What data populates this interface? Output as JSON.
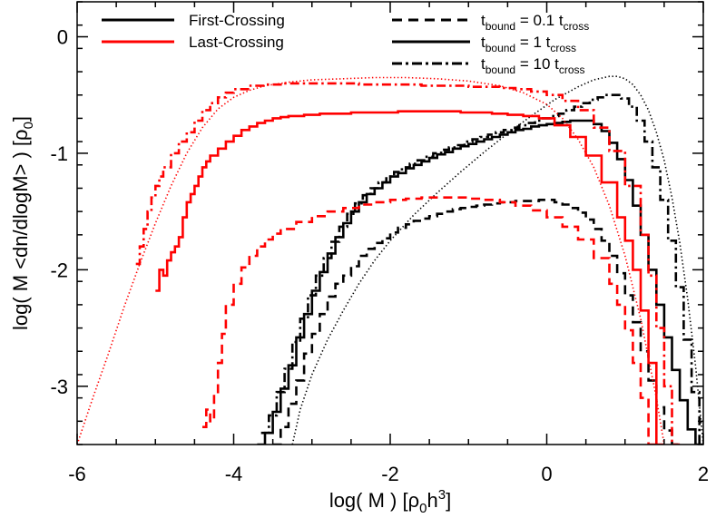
{
  "chart_data": {
    "type": "line",
    "title": "",
    "xlabel": "log( M )   [ρ0h3]",
    "xlabel_parts": {
      "main": "log( M )   [ρ",
      "sub": "0",
      "mid": "h",
      "sup": "3",
      "end": "]"
    },
    "ylabel": "log( M <dn/dlogM> )  [ρ0]",
    "ylabel_parts": {
      "main": "log( M <dn/dlogM> )  [ρ",
      "sub": "0",
      "end": "]"
    },
    "xlim": [
      -6,
      2
    ],
    "ylim": [
      -3.5,
      0.3
    ],
    "x_ticks": [
      -6,
      -4,
      -2,
      0,
      2
    ],
    "x_tick_labels": [
      "-6",
      "-4",
      "-2",
      "0",
      "2"
    ],
    "y_ticks": [
      -3,
      -2,
      -1,
      0
    ],
    "y_tick_labels": [
      "-3",
      "-2",
      "-1",
      "0"
    ],
    "grid": false,
    "legend_color": {
      "placement": "top-left",
      "entries": [
        {
          "label": "First-Crossing",
          "color": "#000000"
        },
        {
          "label": "Last-Crossing",
          "color": "#ff0000"
        }
      ]
    },
    "legend_style": {
      "placement": "top-right",
      "entries": [
        {
          "style": "dashed",
          "label": "t",
          "sub": "bound",
          "mid": " = 0.1 t",
          "sub2": "cross"
        },
        {
          "style": "solid",
          "label": "t",
          "sub": "bound",
          "mid": " = 1 t",
          "sub2": "cross"
        },
        {
          "style": "dashdot",
          "label": "t",
          "sub": "bound",
          "mid": " = 10 t",
          "sub2": "cross"
        }
      ]
    },
    "series": [
      {
        "crossing": "first",
        "tbound": "1",
        "style": "solid",
        "color": "#000000",
        "step": true,
        "x": [
          -3.7,
          -3.6,
          -3.5,
          -3.4,
          -3.3,
          -3.2,
          -3.1,
          -3.0,
          -2.9,
          -2.8,
          -2.7,
          -2.6,
          -2.5,
          -2.4,
          -2.3,
          -2.2,
          -2.1,
          -2.0,
          -1.9,
          -1.8,
          -1.7,
          -1.6,
          -1.5,
          -1.4,
          -1.3,
          -1.2,
          -1.1,
          -1.0,
          -0.9,
          -0.8,
          -0.7,
          -0.6,
          -0.5,
          -0.4,
          -0.3,
          -0.2,
          -0.1,
          0.0,
          0.1,
          0.2,
          0.3,
          0.4,
          0.5,
          0.6,
          0.7,
          0.8,
          0.9,
          1.0,
          1.1,
          1.2,
          1.3,
          1.4,
          1.5,
          1.6,
          1.7,
          1.8,
          1.9
        ],
        "y": [
          -3.5,
          -3.4,
          -3.22,
          -3.02,
          -2.82,
          -2.58,
          -2.38,
          -2.18,
          -2.02,
          -1.86,
          -1.72,
          -1.6,
          -1.5,
          -1.42,
          -1.35,
          -1.3,
          -1.25,
          -1.2,
          -1.17,
          -1.13,
          -1.1,
          -1.07,
          -1.04,
          -1.01,
          -0.99,
          -0.96,
          -0.94,
          -0.92,
          -0.9,
          -0.88,
          -0.86,
          -0.84,
          -0.82,
          -0.8,
          -0.79,
          -0.77,
          -0.76,
          -0.75,
          -0.74,
          -0.73,
          -0.72,
          -0.72,
          -0.72,
          -0.75,
          -0.81,
          -0.91,
          -1.05,
          -1.23,
          -1.45,
          -1.7,
          -2.0,
          -2.3,
          -2.58,
          -2.86,
          -3.12,
          -3.37,
          -3.5
        ]
      },
      {
        "crossing": "first",
        "tbound": "0.1",
        "style": "dashed",
        "color": "#000000",
        "step": true,
        "x": [
          -3.5,
          -3.4,
          -3.3,
          -3.2,
          -3.1,
          -3.0,
          -2.9,
          -2.8,
          -2.7,
          -2.6,
          -2.5,
          -2.4,
          -2.3,
          -2.2,
          -2.1,
          -2.0,
          -1.9,
          -1.8,
          -1.7,
          -1.6,
          -1.5,
          -1.4,
          -1.3,
          -1.2,
          -1.1,
          -1.0,
          -0.9,
          -0.8,
          -0.7,
          -0.6,
          -0.5,
          -0.4,
          -0.3,
          -0.2,
          -0.1,
          0.0,
          0.1,
          0.2,
          0.3,
          0.4,
          0.5,
          0.6,
          0.7,
          0.8,
          0.9,
          1.0,
          1.1,
          1.2,
          1.3,
          1.4,
          1.5,
          1.6
        ],
        "y": [
          -3.5,
          -3.35,
          -3.15,
          -2.95,
          -2.72,
          -2.55,
          -2.38,
          -2.23,
          -2.12,
          -2.05,
          -1.97,
          -1.88,
          -1.82,
          -1.77,
          -1.73,
          -1.68,
          -1.64,
          -1.61,
          -1.58,
          -1.56,
          -1.54,
          -1.52,
          -1.5,
          -1.48,
          -1.47,
          -1.46,
          -1.45,
          -1.44,
          -1.43,
          -1.42,
          -1.42,
          -1.41,
          -1.41,
          -1.41,
          -1.4,
          -1.4,
          -1.42,
          -1.44,
          -1.47,
          -1.51,
          -1.57,
          -1.65,
          -1.75,
          -1.88,
          -2.03,
          -2.22,
          -2.45,
          -2.7,
          -2.95,
          -3.18,
          -3.38,
          -3.5
        ]
      },
      {
        "crossing": "first",
        "tbound": "10",
        "style": "dashdot",
        "color": "#000000",
        "step": true,
        "x": [
          -3.65,
          -3.55,
          -3.45,
          -3.35,
          -3.25,
          -3.15,
          -3.05,
          -2.95,
          -2.85,
          -2.75,
          -2.65,
          -2.55,
          -2.45,
          -2.35,
          -2.25,
          -2.15,
          -2.05,
          -1.95,
          -1.85,
          -1.75,
          -1.65,
          -1.55,
          -1.45,
          -1.35,
          -1.25,
          -1.15,
          -1.05,
          -0.95,
          -0.85,
          -0.75,
          -0.65,
          -0.55,
          -0.45,
          -0.35,
          -0.25,
          -0.15,
          -0.05,
          0.05,
          0.15,
          0.25,
          0.35,
          0.45,
          0.55,
          0.65,
          0.75,
          0.85,
          0.95,
          1.05,
          1.15,
          1.25,
          1.35,
          1.45,
          1.55,
          1.65,
          1.75,
          1.85,
          1.95
        ],
        "y": [
          -3.4,
          -3.25,
          -3.05,
          -2.85,
          -2.62,
          -2.42,
          -2.22,
          -2.05,
          -1.9,
          -1.76,
          -1.63,
          -1.52,
          -1.43,
          -1.36,
          -1.3,
          -1.25,
          -1.2,
          -1.16,
          -1.12,
          -1.09,
          -1.06,
          -1.03,
          -1.0,
          -0.97,
          -0.95,
          -0.93,
          -0.9,
          -0.88,
          -0.86,
          -0.84,
          -0.82,
          -0.8,
          -0.78,
          -0.76,
          -0.74,
          -0.72,
          -0.7,
          -0.68,
          -0.66,
          -0.63,
          -0.6,
          -0.57,
          -0.54,
          -0.52,
          -0.5,
          -0.5,
          -0.53,
          -0.6,
          -0.72,
          -0.9,
          -1.12,
          -1.4,
          -1.75,
          -2.15,
          -2.6,
          -3.05,
          -3.5
        ]
      },
      {
        "crossing": "first",
        "tbound": "theory",
        "style": "dotted",
        "color": "#000000",
        "step": false,
        "x": [
          -3.25,
          -3.15,
          -3.0,
          -2.8,
          -2.6,
          -2.4,
          -2.2,
          -2.0,
          -1.7,
          -1.4,
          -1.1,
          -0.8,
          -0.5,
          -0.2,
          0.1,
          0.4,
          0.6,
          0.8,
          0.9,
          1.0,
          1.1,
          1.2,
          1.3,
          1.4,
          1.5,
          1.6,
          1.7,
          1.8,
          1.9,
          2.0
        ],
        "y": [
          -3.5,
          -3.2,
          -2.9,
          -2.6,
          -2.35,
          -2.12,
          -1.92,
          -1.75,
          -1.53,
          -1.34,
          -1.16,
          -0.99,
          -0.83,
          -0.68,
          -0.54,
          -0.43,
          -0.37,
          -0.34,
          -0.34,
          -0.36,
          -0.41,
          -0.5,
          -0.63,
          -0.82,
          -1.06,
          -1.38,
          -1.77,
          -2.25,
          -2.82,
          -3.5
        ]
      },
      {
        "crossing": "last",
        "tbound": "1",
        "style": "solid",
        "color": "#ff0000",
        "step": true,
        "x": [
          -5.0,
          -4.95,
          -4.9,
          -4.85,
          -4.8,
          -4.75,
          -4.7,
          -4.65,
          -4.6,
          -4.55,
          -4.5,
          -4.45,
          -4.4,
          -4.35,
          -4.3,
          -4.2,
          -4.1,
          -4.0,
          -3.9,
          -3.8,
          -3.7,
          -3.6,
          -3.5,
          -3.4,
          -3.3,
          -3.1,
          -2.9,
          -2.7,
          -2.5,
          -2.3,
          -2.1,
          -1.9,
          -1.7,
          -1.5,
          -1.3,
          -1.1,
          -0.9,
          -0.7,
          -0.5,
          -0.3,
          -0.1,
          0.1,
          0.3,
          0.5,
          0.7,
          0.9,
          1.0,
          1.1,
          1.2,
          1.3,
          1.4
        ],
        "y": [
          -2.18,
          -2.0,
          -2.05,
          -1.92,
          -1.85,
          -1.8,
          -1.72,
          -1.55,
          -1.42,
          -1.35,
          -1.28,
          -1.2,
          -1.12,
          -1.07,
          -1.02,
          -0.96,
          -0.9,
          -0.85,
          -0.8,
          -0.77,
          -0.74,
          -0.72,
          -0.7,
          -0.69,
          -0.68,
          -0.67,
          -0.66,
          -0.66,
          -0.65,
          -0.65,
          -0.65,
          -0.64,
          -0.64,
          -0.64,
          -0.64,
          -0.65,
          -0.65,
          -0.66,
          -0.67,
          -0.68,
          -0.7,
          -0.76,
          -0.86,
          -1.02,
          -1.25,
          -1.55,
          -1.75,
          -2.0,
          -2.35,
          -2.8,
          -3.5
        ]
      },
      {
        "crossing": "last",
        "tbound": "0.1",
        "style": "dashed",
        "color": "#ff0000",
        "step": true,
        "x": [
          -4.4,
          -4.35,
          -4.3,
          -4.25,
          -4.2,
          -4.15,
          -4.1,
          -4.0,
          -3.9,
          -3.8,
          -3.7,
          -3.6,
          -3.5,
          -3.4,
          -3.2,
          -3.0,
          -2.8,
          -2.6,
          -2.4,
          -2.2,
          -2.0,
          -1.8,
          -1.6,
          -1.4,
          -1.2,
          -1.0,
          -0.8,
          -0.6,
          -0.4,
          -0.2,
          0.0,
          0.2,
          0.4,
          0.6,
          0.8,
          0.9,
          1.0,
          1.1,
          1.2,
          1.3
        ],
        "y": [
          -3.35,
          -3.2,
          -3.3,
          -3.05,
          -2.8,
          -2.55,
          -2.3,
          -2.12,
          -1.98,
          -1.88,
          -1.8,
          -1.74,
          -1.69,
          -1.65,
          -1.59,
          -1.54,
          -1.5,
          -1.47,
          -1.44,
          -1.42,
          -1.4,
          -1.39,
          -1.38,
          -1.38,
          -1.38,
          -1.39,
          -1.4,
          -1.42,
          -1.45,
          -1.49,
          -1.55,
          -1.63,
          -1.74,
          -1.9,
          -2.12,
          -2.3,
          -2.52,
          -2.8,
          -3.1,
          -3.5
        ]
      },
      {
        "crossing": "last",
        "tbound": "10",
        "style": "dashdot",
        "color": "#ff0000",
        "step": true,
        "x": [
          -5.25,
          -5.2,
          -5.15,
          -5.1,
          -5.05,
          -5.0,
          -4.95,
          -4.9,
          -4.8,
          -4.7,
          -4.6,
          -4.5,
          -4.4,
          -4.3,
          -4.2,
          -4.1,
          -4.0,
          -3.8,
          -3.6,
          -3.4,
          -3.2,
          -3.0,
          -2.8,
          -2.6,
          -2.4,
          -2.2,
          -2.0,
          -1.8,
          -1.6,
          -1.4,
          -1.2,
          -1.0,
          -0.8,
          -0.6,
          -0.4,
          -0.2,
          0.0,
          0.2,
          0.4,
          0.6,
          0.8,
          1.0,
          1.2,
          1.3,
          1.4,
          1.5,
          1.6
        ],
        "y": [
          -1.95,
          -1.8,
          -1.65,
          -1.5,
          -1.38,
          -1.28,
          -1.2,
          -1.12,
          -1.0,
          -0.9,
          -0.82,
          -0.72,
          -0.63,
          -0.57,
          -0.52,
          -0.48,
          -0.45,
          -0.42,
          -0.41,
          -0.4,
          -0.4,
          -0.4,
          -0.4,
          -0.4,
          -0.41,
          -0.41,
          -0.41,
          -0.41,
          -0.42,
          -0.42,
          -0.42,
          -0.43,
          -0.43,
          -0.44,
          -0.45,
          -0.47,
          -0.5,
          -0.55,
          -0.63,
          -0.78,
          -0.98,
          -1.28,
          -1.7,
          -2.05,
          -2.5,
          -3.0,
          -3.5
        ]
      },
      {
        "crossing": "last",
        "tbound": "theory",
        "style": "dotted",
        "color": "#ff0000",
        "step": false,
        "x": [
          -6.0,
          -5.8,
          -5.6,
          -5.4,
          -5.2,
          -5.0,
          -4.8,
          -4.6,
          -4.4,
          -4.2,
          -4.0,
          -3.8,
          -3.6,
          -3.3,
          -3.0,
          -2.6,
          -2.2,
          -1.8,
          -1.4,
          -1.0,
          -0.6,
          -0.3,
          0.0,
          0.2,
          0.4,
          0.6,
          0.8,
          1.0,
          1.2,
          1.4,
          1.5
        ],
        "y": [
          -3.5,
          -3.1,
          -2.72,
          -2.32,
          -1.95,
          -1.6,
          -1.28,
          -1.0,
          -0.78,
          -0.62,
          -0.52,
          -0.46,
          -0.42,
          -0.39,
          -0.37,
          -0.36,
          -0.35,
          -0.35,
          -0.36,
          -0.38,
          -0.42,
          -0.48,
          -0.58,
          -0.7,
          -0.88,
          -1.12,
          -1.45,
          -1.88,
          -2.42,
          -3.1,
          -3.5
        ]
      }
    ]
  }
}
